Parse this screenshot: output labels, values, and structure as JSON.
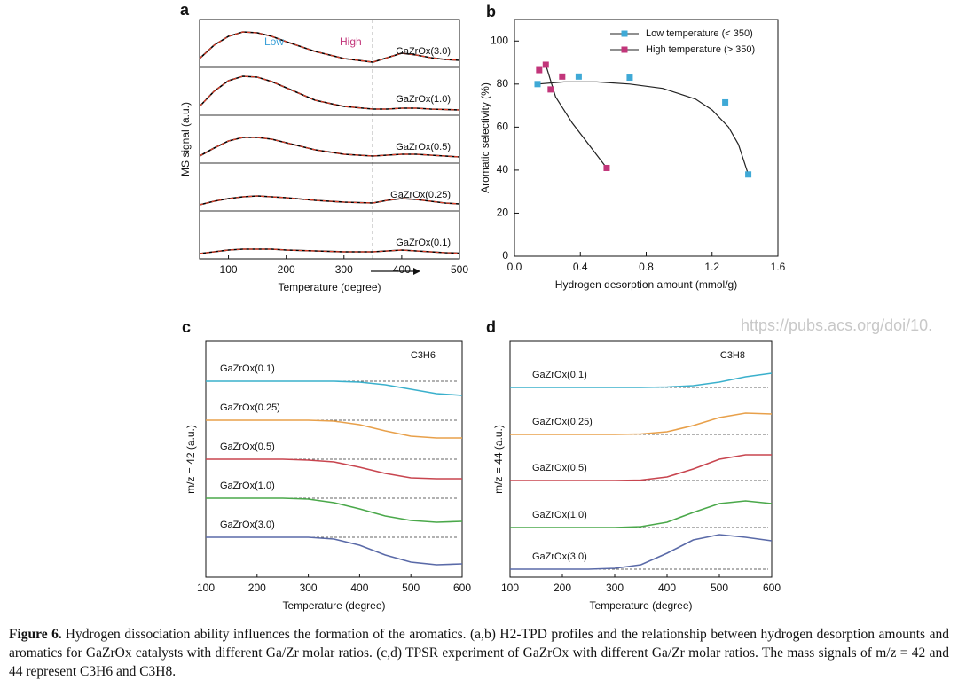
{
  "chart_data": [
    {
      "type": "stacked-line",
      "panel_label": "a",
      "xlabel": "Temperature (degree)",
      "ylabel": "MS signal (a.u.)",
      "xlim": [
        50,
        500
      ],
      "xticks": [
        100,
        200,
        300,
        400,
        500
      ],
      "divider": 350,
      "annotations": [
        {
          "text": "Low",
          "color": "#3aa0d8"
        },
        {
          "text": "High",
          "color": "#c2357a"
        }
      ],
      "x": [
        50,
        75,
        100,
        125,
        150,
        175,
        200,
        250,
        300,
        350,
        375,
        400,
        425,
        450,
        475,
        500
      ],
      "series": [
        {
          "name": "GaZrOx(3.0)",
          "color": "#000000",
          "fit_color": "#e0402a",
          "values": [
            0.5,
            2.0,
            3.0,
            3.5,
            3.4,
            3.0,
            2.4,
            1.3,
            0.5,
            0.1,
            0.6,
            1.1,
            0.9,
            0.6,
            0.4,
            0.3
          ]
        },
        {
          "name": "GaZrOx(1.0)",
          "color": "#000000",
          "fit_color": "#e0402a",
          "values": [
            0.5,
            2.2,
            3.4,
            3.9,
            3.8,
            3.3,
            2.6,
            1.2,
            0.5,
            0.2,
            0.2,
            0.3,
            0.3,
            0.2,
            0.15,
            0.1
          ]
        },
        {
          "name": "GaZrOx(0.5)",
          "color": "#000000",
          "fit_color": "#e0402a",
          "values": [
            0.3,
            1.2,
            2.0,
            2.4,
            2.4,
            2.2,
            1.8,
            1.0,
            0.5,
            0.3,
            0.4,
            0.5,
            0.5,
            0.4,
            0.3,
            0.2
          ]
        },
        {
          "name": "GaZrOx(0.25)",
          "color": "#000000",
          "fit_color": "#e0402a",
          "values": [
            0.2,
            0.6,
            0.9,
            1.1,
            1.2,
            1.1,
            1.0,
            0.7,
            0.5,
            0.4,
            0.7,
            0.9,
            0.8,
            0.6,
            0.4,
            0.3
          ]
        },
        {
          "name": "GaZrOx(0.1)",
          "color": "#000000",
          "fit_color": "#e0402a",
          "values": [
            0.1,
            0.3,
            0.5,
            0.6,
            0.6,
            0.6,
            0.5,
            0.4,
            0.3,
            0.3,
            0.4,
            0.5,
            0.4,
            0.3,
            0.2,
            0.15
          ]
        }
      ]
    },
    {
      "type": "scatter",
      "panel_label": "b",
      "xlabel": "Hydrogen desorption amount (mmol/g)",
      "ylabel": "Aromatic selectivity (%)",
      "xlim": [
        0,
        1.6
      ],
      "xticks": [
        {
          "value": 0,
          "label": "0.0"
        },
        0.4,
        0.8,
        1.2,
        1.6
      ],
      "ylim": [
        0,
        110
      ],
      "yticks": [
        0,
        20,
        40,
        60,
        80,
        100
      ],
      "series": [
        {
          "name": "Low temperature (< 350)",
          "color": "#3fa9d6",
          "x": [
            0.14,
            0.39,
            0.7,
            1.28,
            1.42
          ],
          "values": [
            80,
            83.5,
            83,
            71.5,
            38
          ]
        },
        {
          "name": "High temperature (> 350)",
          "color": "#c2357a",
          "x": [
            0.15,
            0.19,
            0.22,
            0.29,
            0.56
          ],
          "values": [
            86.5,
            89,
            77.5,
            83.5,
            41
          ]
        }
      ],
      "fits": [
        {
          "x": [
            0.14,
            0.3,
            0.5,
            0.7,
            0.9,
            1.1,
            1.2,
            1.3,
            1.36,
            1.42
          ],
          "values": [
            80,
            81,
            81,
            80,
            78,
            73,
            68,
            60,
            52,
            38
          ]
        },
        {
          "x": [
            0.19,
            0.25,
            0.35,
            0.45,
            0.56
          ],
          "values": [
            89,
            74,
            62,
            52,
            41
          ]
        }
      ]
    },
    {
      "type": "stacked-line",
      "panel_label": "c",
      "xlabel": "Temperature (degree)",
      "ylabel": "m/z = 42 (a.u.)",
      "annotation": "C3H6",
      "xlim": [
        100,
        600
      ],
      "xticks": [
        100,
        200,
        300,
        400,
        500,
        600
      ],
      "x": [
        100,
        150,
        200,
        250,
        300,
        350,
        400,
        450,
        500,
        550,
        600
      ],
      "series": [
        {
          "name": "GaZrOx(0.1)",
          "color": "#3ab0cc",
          "values": [
            0,
            0,
            0,
            0,
            0,
            0,
            -0.1,
            -0.4,
            -0.9,
            -1.4,
            -1.6
          ]
        },
        {
          "name": "GaZrOx(0.25)",
          "color": "#e8a04a",
          "values": [
            0,
            0,
            0,
            0,
            0,
            -0.1,
            -0.5,
            -1.2,
            -1.8,
            -2.0,
            -2.0
          ]
        },
        {
          "name": "GaZrOx(0.5)",
          "color": "#c8454f",
          "values": [
            0,
            0,
            0,
            0,
            -0.1,
            -0.3,
            -0.9,
            -1.6,
            -2.1,
            -2.2,
            -2.2
          ]
        },
        {
          "name": "GaZrOx(1.0)",
          "color": "#4aa84a",
          "values": [
            0,
            0,
            0,
            0,
            -0.1,
            -0.5,
            -1.2,
            -2.0,
            -2.5,
            -2.7,
            -2.6
          ]
        },
        {
          "name": "GaZrOx(3.0)",
          "color": "#5a6aa8",
          "values": [
            0,
            0,
            0,
            0,
            0,
            -0.2,
            -0.9,
            -2.0,
            -2.8,
            -3.1,
            -3.0
          ]
        }
      ]
    },
    {
      "type": "stacked-line",
      "panel_label": "d",
      "xlabel": "Temperature (degree)",
      "ylabel": "m/z = 44 (a.u.)",
      "annotation": "C3H8",
      "xlim": [
        100,
        600
      ],
      "xticks": [
        100,
        200,
        300,
        400,
        500,
        600
      ],
      "x": [
        100,
        150,
        200,
        250,
        300,
        350,
        400,
        450,
        500,
        550,
        600
      ],
      "series": [
        {
          "name": "GaZrOx(0.1)",
          "color": "#3ab0cc",
          "values": [
            0,
            0,
            0,
            0,
            0,
            0,
            0.05,
            0.2,
            0.6,
            1.2,
            1.6
          ]
        },
        {
          "name": "GaZrOx(0.25)",
          "color": "#e8a04a",
          "values": [
            0,
            0,
            0,
            0,
            0,
            0.05,
            0.3,
            1.0,
            1.9,
            2.4,
            2.3
          ]
        },
        {
          "name": "GaZrOx(0.5)",
          "color": "#c8454f",
          "values": [
            0,
            0,
            0,
            0,
            0,
            0.05,
            0.4,
            1.3,
            2.4,
            2.9,
            2.9
          ]
        },
        {
          "name": "GaZrOx(1.0)",
          "color": "#4aa84a",
          "values": [
            0,
            0,
            0,
            0,
            0,
            0.1,
            0.6,
            1.7,
            2.7,
            3.0,
            2.7
          ]
        },
        {
          "name": "GaZrOx(3.0)",
          "color": "#5a6aa8",
          "values": [
            0,
            0,
            0,
            0,
            0.1,
            0.5,
            1.8,
            3.3,
            3.9,
            3.6,
            3.2
          ]
        }
      ]
    }
  ],
  "watermark": "https://pubs.acs.org/doi/10.",
  "caption": {
    "label": "Figure 6.",
    "text": "Hydrogen dissociation ability influences the formation of the aromatics. (a,b) H2-TPD profiles and the relationship between hydrogen desorption amounts and aromatics for GaZrOx catalysts with different Ga/Zr molar ratios. (c,d) TPSR experiment of GaZrOx with different Ga/Zr molar ratios. The mass signals of m/z = 42 and 44 represent C3H6 and C3H8."
  }
}
